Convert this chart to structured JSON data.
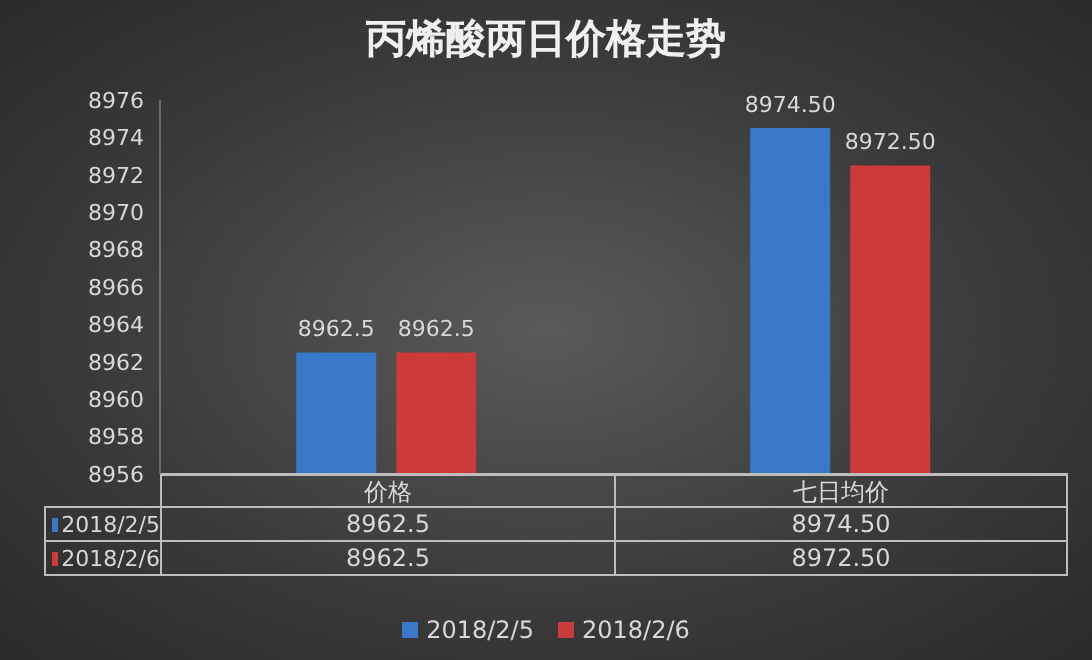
{
  "chart_data": {
    "type": "bar",
    "title": "丙烯酸两日价格走势",
    "categories": [
      "价格",
      "七日均价"
    ],
    "series": [
      {
        "name": "2018/2/5",
        "color": "#3a78c9",
        "values": [
          8962.5,
          8974.5
        ],
        "value_labels": [
          "8962.5",
          "8974.50"
        ]
      },
      {
        "name": "2018/2/6",
        "color": "#cc3a3a",
        "values": [
          8962.5,
          8972.5
        ],
        "value_labels": [
          "8962.5",
          "8972.50"
        ]
      }
    ],
    "ylim": [
      8956,
      8976
    ],
    "yticks": [
      8956,
      8958,
      8960,
      8962,
      8964,
      8966,
      8968,
      8970,
      8972,
      8974,
      8976
    ],
    "legend": "bottom"
  }
}
